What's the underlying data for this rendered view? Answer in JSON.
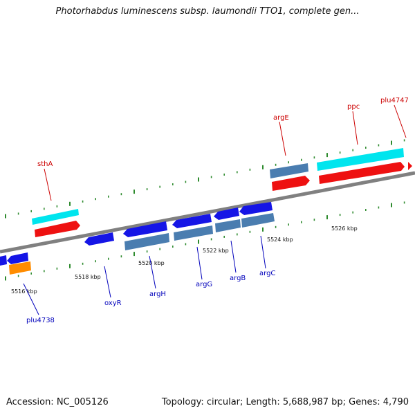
{
  "header": {
    "title": "Photorhabdus luminescens subsp. laumondii TTO1, complete gen..."
  },
  "footer": {
    "accession": "Accession: NC_005126",
    "summary": "Topology: circular; Length: 5,688,987 bp; Genes: 4,790"
  },
  "colors": {
    "backbone": "#808080",
    "tick": "#2e8b2e",
    "forward_label": "#cc0000",
    "reverse_label": "#0000bb",
    "blue_gene": "#1515e6",
    "steel_gene": "#4a7db0",
    "cyan_gene": "#00e5ee",
    "red_gene": "#ee1111",
    "orange_gene": "#ff8c00"
  },
  "position_ticks": [
    {
      "label": "5516 kbp"
    },
    {
      "label": "5518 kbp"
    },
    {
      "label": "5520 kbp"
    },
    {
      "label": "5522 kbp"
    },
    {
      "label": "5524 kbp"
    },
    {
      "label": "5526 kbp"
    }
  ],
  "gene_labels": [
    {
      "name": "sthA",
      "strand": "forward"
    },
    {
      "name": "argE",
      "strand": "forward"
    },
    {
      "name": "ppc",
      "strand": "forward"
    },
    {
      "name": "plu4747",
      "strand": "forward"
    },
    {
      "name": "plu4738",
      "strand": "reverse"
    },
    {
      "name": "oxyR",
      "strand": "reverse"
    },
    {
      "name": "argH",
      "strand": "reverse"
    },
    {
      "name": "argG",
      "strand": "reverse"
    },
    {
      "name": "argB",
      "strand": "reverse"
    },
    {
      "name": "argC",
      "strand": "reverse"
    }
  ]
}
